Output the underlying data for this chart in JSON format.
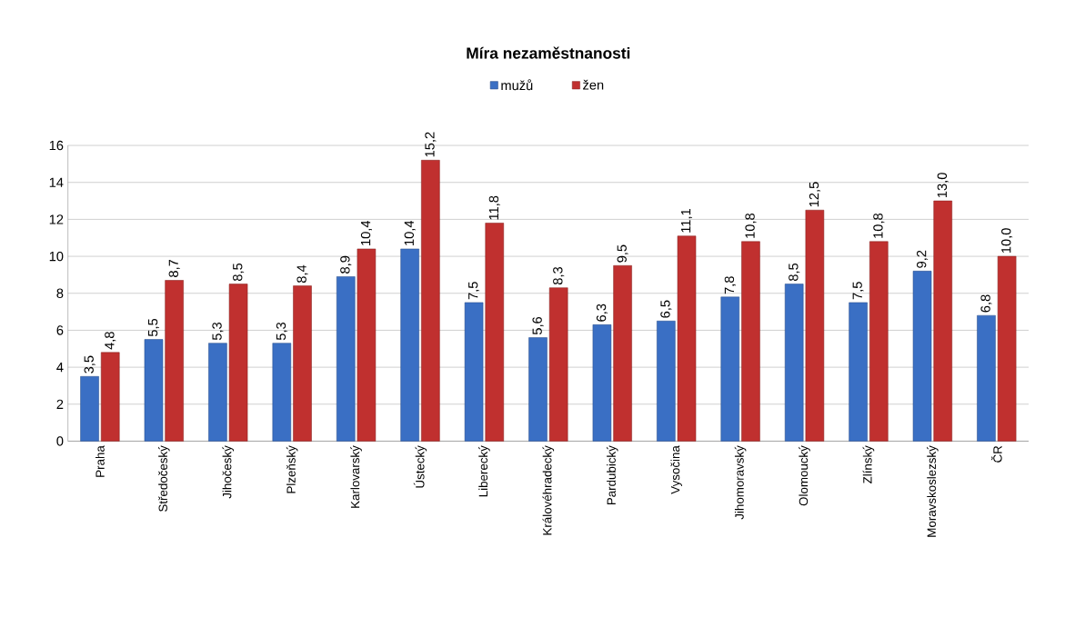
{
  "chart_data": {
    "type": "bar",
    "title": "Míra nezaměstnanosti",
    "categories": [
      "Praha",
      "Středočeský",
      "Jihočeský",
      "Plzeňský",
      "Karlovarský",
      "Ústecký",
      "Liberecký",
      "Královéhradecký",
      "Pardubický",
      "Vysočina",
      "Jihomoravský",
      "Olomoucký",
      "Zlínský",
      "Moravskoslezský",
      "ČR"
    ],
    "series": [
      {
        "name": "mužů",
        "color": "#3a6fc4",
        "values": [
          3.5,
          5.5,
          5.3,
          5.3,
          8.9,
          10.4,
          7.5,
          5.6,
          6.3,
          6.5,
          7.8,
          8.5,
          7.5,
          9.2,
          6.8
        ],
        "value_labels": [
          "3,5",
          "5,5",
          "5,3",
          "5,3",
          "8,9",
          "10,4",
          "7,5",
          "5,6",
          "6,3",
          "6,5",
          "7,8",
          "8,5",
          "7,5",
          "9,2",
          "6,8"
        ]
      },
      {
        "name": "žen",
        "color": "#c0302f",
        "values": [
          4.8,
          8.7,
          8.5,
          8.4,
          10.4,
          15.2,
          11.8,
          8.3,
          9.5,
          11.1,
          10.8,
          12.5,
          10.8,
          13.0,
          10.0
        ],
        "value_labels": [
          "4,8",
          "8,7",
          "8,5",
          "8,4",
          "10,4",
          "15,2",
          "11,8",
          "8,3",
          "9,5",
          "11,1",
          "10,8",
          "12,5",
          "10,8",
          "13,0",
          "10,0"
        ]
      }
    ],
    "ylim": [
      0,
      16
    ],
    "yticks": [
      0,
      2,
      4,
      6,
      8,
      10,
      12,
      14,
      16
    ],
    "grid": "y",
    "legend": "top"
  }
}
